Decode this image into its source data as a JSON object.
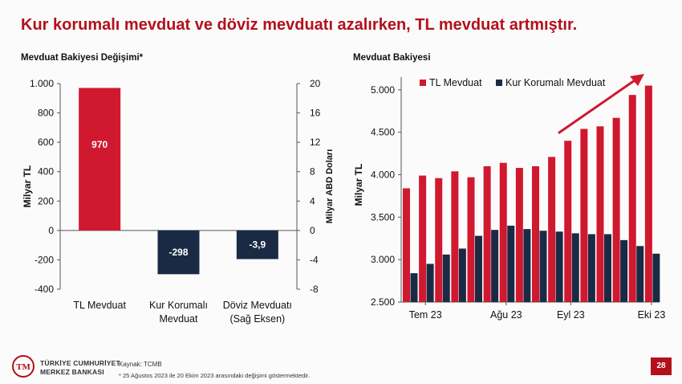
{
  "slide": {
    "title": "Kur korumalı mevduat ve döviz mevduatı azalırken, TL mevduat artmıştır.",
    "page_number": "28",
    "source": "Kaynak: TCMB",
    "footnote": "* 25 Ağustos 2023 ile 20 Ekim 2023 arasındaki değişimi göstermektedir.",
    "bank_name_line1": "TÜRKİYE CUMHURİYET",
    "bank_name_line2": "MERKEZ BANKASI"
  },
  "colors": {
    "red": "#d0182f",
    "navy": "#1b2a44",
    "title": "#b3101c"
  },
  "chart_data": [
    {
      "type": "bar",
      "title": "Mevduat Bakiyesi Değişimi*",
      "ylabel": "Milyar TL",
      "y2label": "Milyar ABD Doları",
      "ylim": [
        -400,
        1000
      ],
      "y2lim": [
        -8,
        20
      ],
      "yticks": [
        -400,
        -200,
        0,
        200,
        400,
        600,
        800,
        1000
      ],
      "ytick_labels": [
        "-400",
        "-200",
        "0",
        "200",
        "400",
        "600",
        "800",
        "1.000"
      ],
      "y2ticks": [
        -8,
        -4,
        0,
        4,
        8,
        12,
        16,
        20
      ],
      "y2tick_labels": [
        "-8",
        "-4",
        "0",
        "4",
        "8",
        "12",
        "16",
        "20"
      ],
      "bars": [
        {
          "category_lines": [
            "TL Mevduat"
          ],
          "value": 970,
          "label": "970",
          "axis": "left",
          "color": "#d0182f"
        },
        {
          "category_lines": [
            "Kur Korumalı",
            "Mevduat"
          ],
          "value": -298,
          "label": "-298",
          "axis": "left",
          "color": "#1b2a44"
        },
        {
          "category_lines": [
            "Döviz Mevduatı",
            "(Sağ Eksen)"
          ],
          "value": -3.9,
          "label": "-3,9",
          "axis": "right",
          "color": "#1b2a44"
        }
      ]
    },
    {
      "type": "bar",
      "title": "Mevduat Bakiyesi",
      "ylabel": "Milyar TL",
      "ylim": [
        2500,
        5150
      ],
      "yticks": [
        2500,
        3000,
        3500,
        4000,
        4500,
        5000
      ],
      "ytick_labels": [
        "2.500",
        "3.000",
        "3.500",
        "4.000",
        "4.500",
        "5.000"
      ],
      "x_tick_labels": [
        {
          "index": 1,
          "label": "Tem 23"
        },
        {
          "index": 6,
          "label": "Ağu 23"
        },
        {
          "index": 10,
          "label": "Eyl 23"
        },
        {
          "index": 15,
          "label": "Eki 23"
        }
      ],
      "series": [
        {
          "name": "TL Mevduat",
          "color": "#d0182f",
          "values": [
            3840,
            3990,
            3960,
            4040,
            3970,
            4100,
            4140,
            4080,
            4100,
            4210,
            4400,
            4540,
            4570,
            4670,
            4940,
            5050
          ]
        },
        {
          "name": "Kur Korumalı Mevduat",
          "color": "#1b2a44",
          "values": [
            2840,
            2950,
            3060,
            3130,
            3280,
            3350,
            3400,
            3360,
            3340,
            3330,
            3310,
            3300,
            3300,
            3230,
            3160,
            3070
          ]
        }
      ],
      "trend_arrow": true
    }
  ]
}
